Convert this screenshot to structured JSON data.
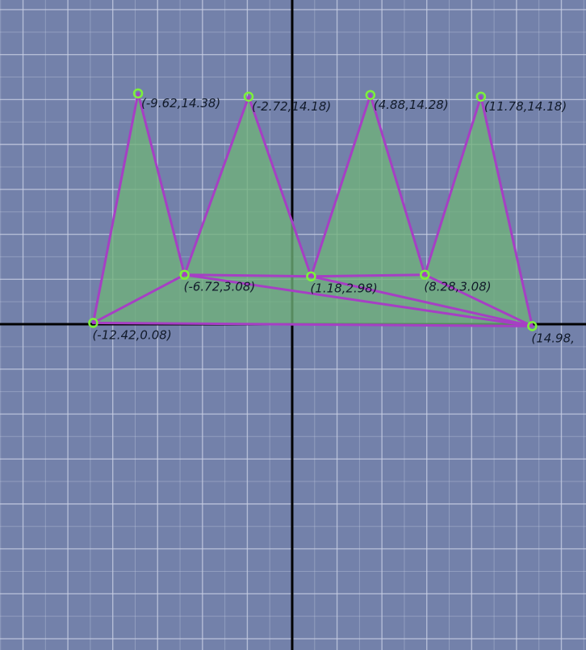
{
  "chart_data": {
    "type": "scatter",
    "title": "",
    "xlabel": "",
    "ylabel": "",
    "grid": true,
    "points": [
      {
        "id": "A",
        "x": -12.42,
        "y": 0.08,
        "label": "(-12.42,0.08)"
      },
      {
        "id": "B",
        "x": -9.62,
        "y": 14.38,
        "label": "(-9.62,14.38)"
      },
      {
        "id": "C",
        "x": -6.72,
        "y": 3.08,
        "label": "(-6.72,3.08)"
      },
      {
        "id": "D",
        "x": -2.72,
        "y": 14.18,
        "label": "(-2.72,14.18)"
      },
      {
        "id": "E",
        "x": 1.18,
        "y": 2.98,
        "label": "(1.18,2.98)"
      },
      {
        "id": "F",
        "x": 4.88,
        "y": 14.28,
        "label": "(4.88,14.28)"
      },
      {
        "id": "G",
        "x": 8.28,
        "y": 3.08,
        "label": "(8.28,3.08)"
      },
      {
        "id": "H",
        "x": 11.78,
        "y": 14.18,
        "label": "(11.78,14.18)"
      },
      {
        "id": "I",
        "x": 14.98,
        "y": -0.12,
        "label": "(14.98,"
      }
    ],
    "outline": [
      "A",
      "B",
      "C",
      "D",
      "E",
      "F",
      "G",
      "H",
      "I",
      "A"
    ],
    "edges": [
      [
        "A",
        "C"
      ],
      [
        "C",
        "E"
      ],
      [
        "E",
        "G"
      ],
      [
        "C",
        "I"
      ],
      [
        "E",
        "I"
      ],
      [
        "G",
        "I"
      ]
    ],
    "colors": {
      "background": "#7381aa",
      "grid": "#c9d0e4",
      "axis": "#000000",
      "fill": "#6fb27a",
      "edge": "#a63fc4",
      "vertex": "#7cf23a"
    }
  }
}
